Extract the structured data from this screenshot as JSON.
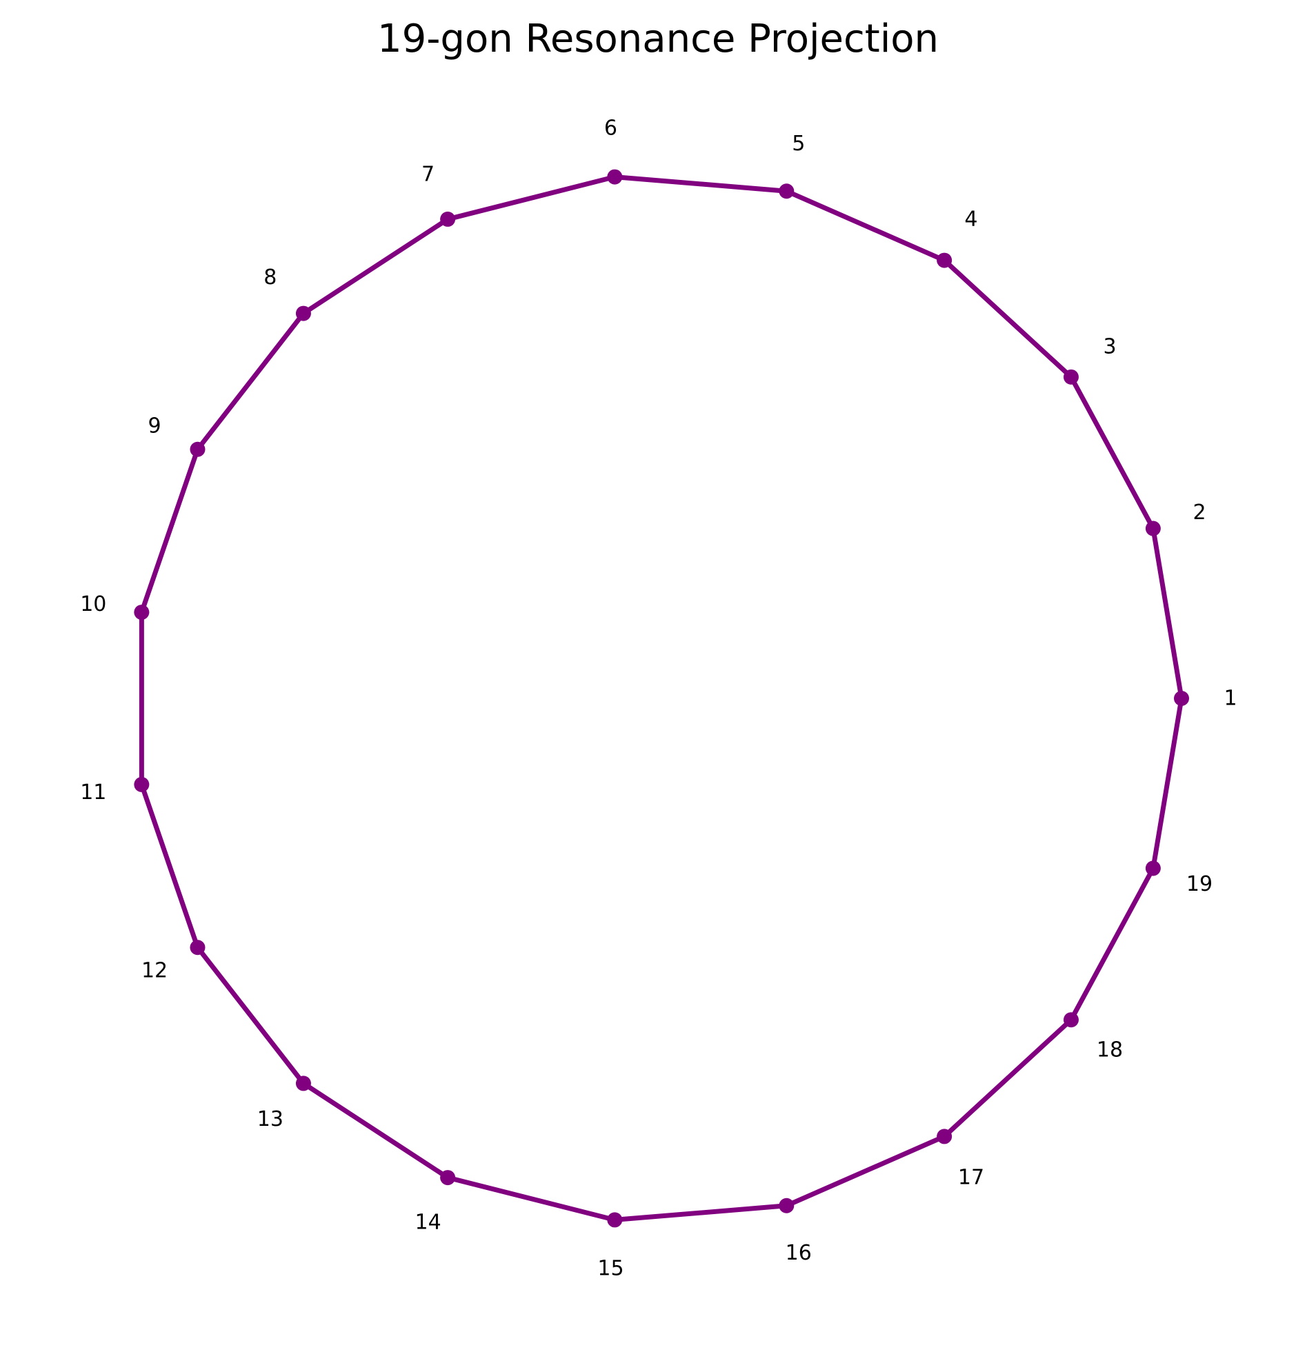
{
  "diagram": {
    "title": "19-gon Resonance Projection",
    "shape": "regular polygon",
    "vertex_count": 19,
    "closed": true,
    "stroke_color": "#800080",
    "marker_color": "#800080",
    "vertices": [
      {
        "label": "1"
      },
      {
        "label": "2"
      },
      {
        "label": "3"
      },
      {
        "label": "4"
      },
      {
        "label": "5"
      },
      {
        "label": "6"
      },
      {
        "label": "7"
      },
      {
        "label": "8"
      },
      {
        "label": "9"
      },
      {
        "label": "10"
      },
      {
        "label": "11"
      },
      {
        "label": "12"
      },
      {
        "label": "13"
      },
      {
        "label": "14"
      },
      {
        "label": "15"
      },
      {
        "label": "16"
      },
      {
        "label": "17"
      },
      {
        "label": "18"
      },
      {
        "label": "19"
      }
    ]
  }
}
